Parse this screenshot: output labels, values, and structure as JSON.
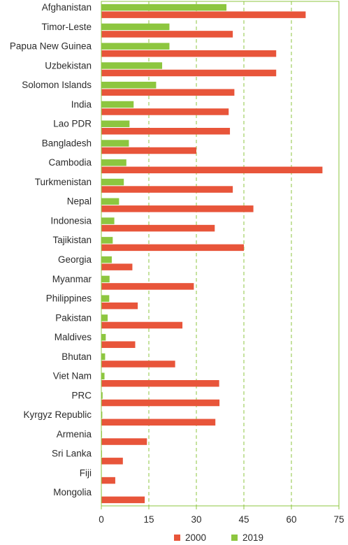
{
  "chart_data": {
    "type": "bar",
    "orientation": "horizontal",
    "categories": [
      "Afghanistan",
      "Timor-Leste",
      "Papua New Guinea",
      "Uzbekistan",
      "Solomon Islands",
      "India",
      "Lao PDR",
      "Bangladesh",
      "Cambodia",
      "Turkmenistan",
      "Nepal",
      "Indonesia",
      "Tajikistan",
      "Georgia",
      "Myanmar",
      "Philippines",
      "Pakistan",
      "Maldives",
      "Bhutan",
      "Viet Nam",
      "PRC",
      "Kyrgyz Republic",
      "Armenia",
      "Sri Lanka",
      "Fiji",
      "Mongolia"
    ],
    "series": [
      {
        "name": "2000",
        "color": "#e8553a",
        "values": [
          64.5,
          41.5,
          55.2,
          55.2,
          42.0,
          40.2,
          40.6,
          30.0,
          69.8,
          41.5,
          48.0,
          35.8,
          45.0,
          9.8,
          29.2,
          11.5,
          25.6,
          10.7,
          23.3,
          37.2,
          37.3,
          36.0,
          14.4,
          6.8,
          4.4,
          13.7
        ]
      },
      {
        "name": "2019",
        "color": "#8dc63f",
        "values": [
          39.5,
          21.5,
          21.5,
          19.2,
          17.3,
          10.2,
          8.9,
          8.7,
          7.9,
          7.1,
          5.6,
          4.1,
          3.6,
          3.3,
          2.6,
          2.5,
          2.0,
          1.4,
          1.2,
          1.0,
          0.4,
          0.3,
          0.2,
          0.2,
          0.1,
          0.1
        ]
      }
    ],
    "xticks": [
      "0",
      "15",
      "30",
      "45",
      "60",
      "75"
    ],
    "xlim": [
      0,
      75
    ],
    "grid": "vertical dashed",
    "legend": {
      "position": "bottom-center",
      "entries": [
        "2000",
        "2019"
      ]
    }
  }
}
